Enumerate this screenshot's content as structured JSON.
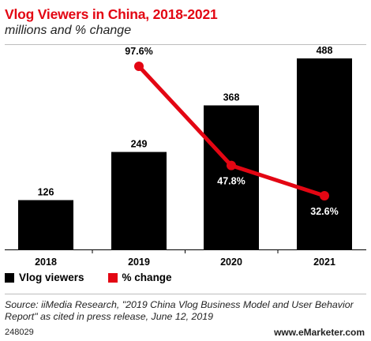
{
  "header": {
    "title": "Vlog Viewers in China, 2018-2021",
    "subtitle": "millions and % change"
  },
  "colors": {
    "bar": "#000000",
    "line": "#e30613",
    "title": "#e30613"
  },
  "chart_data": {
    "type": "bar",
    "categories": [
      "2018",
      "2019",
      "2020",
      "2021"
    ],
    "series": [
      {
        "name": "Vlog viewers",
        "type": "bar",
        "values": [
          126,
          249,
          368,
          488
        ],
        "labels": [
          "126",
          "249",
          "368",
          "488"
        ]
      },
      {
        "name": "% change",
        "type": "line",
        "values": [
          null,
          97.6,
          47.8,
          32.6
        ],
        "labels": [
          "",
          "97.6%",
          "47.8%",
          "32.6%"
        ]
      }
    ],
    "legend_position": "bottom-left",
    "grid": false
  },
  "legend": [
    {
      "label": "Vlog viewers",
      "color": "#000000"
    },
    {
      "label": "% change",
      "color": "#e30613"
    }
  ],
  "source": "Source: iiMedia Research, \"2019 China Vlog Business Model and User Behavior Report\" as cited in press release, June 12, 2019",
  "footer": {
    "id": "248029",
    "brand": "www.eMarketer.com"
  }
}
